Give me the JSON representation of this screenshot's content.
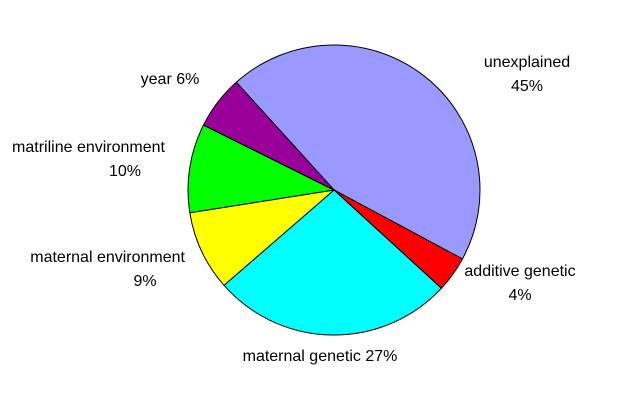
{
  "chart_data": {
    "type": "pie",
    "categories": [
      "unexplained",
      "additive genetic",
      "maternal genetic",
      "maternal environment",
      "matriline environment",
      "year"
    ],
    "values": [
      45,
      4,
      27,
      9,
      10,
      6
    ],
    "value_labels": [
      "45%",
      "4%",
      "27%",
      "9%",
      "10%",
      "6%"
    ],
    "colors": [
      "#9999ff",
      "#ff0000",
      "#00ffff",
      "#ffff00",
      "#00ff00",
      "#990099"
    ]
  }
}
